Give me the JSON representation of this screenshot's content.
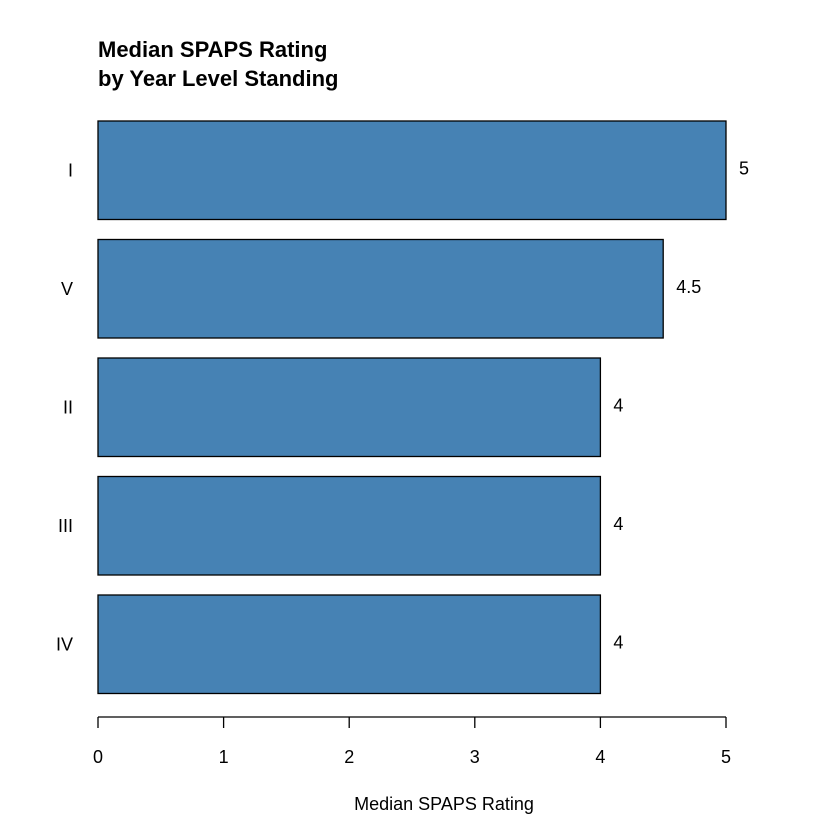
{
  "chart_data": {
    "type": "bar",
    "orientation": "horizontal",
    "title": [
      "Median SPAPS Rating",
      "by Year Level Standing"
    ],
    "xlabel": "Median SPAPS Rating",
    "ylabel": "",
    "categories": [
      "I",
      "V",
      "II",
      "III",
      "IV"
    ],
    "values": [
      5,
      4.5,
      4,
      4,
      4
    ],
    "value_labels": [
      "5",
      "4.5",
      "4",
      "4",
      "4"
    ],
    "xlim": [
      0,
      5
    ],
    "xticks": [
      0,
      1,
      2,
      3,
      4,
      5
    ],
    "xtick_labels": [
      "0",
      "1",
      "2",
      "3",
      "4",
      "5"
    ],
    "bar_color": "#4682b4",
    "grid": false,
    "legend": "none"
  }
}
